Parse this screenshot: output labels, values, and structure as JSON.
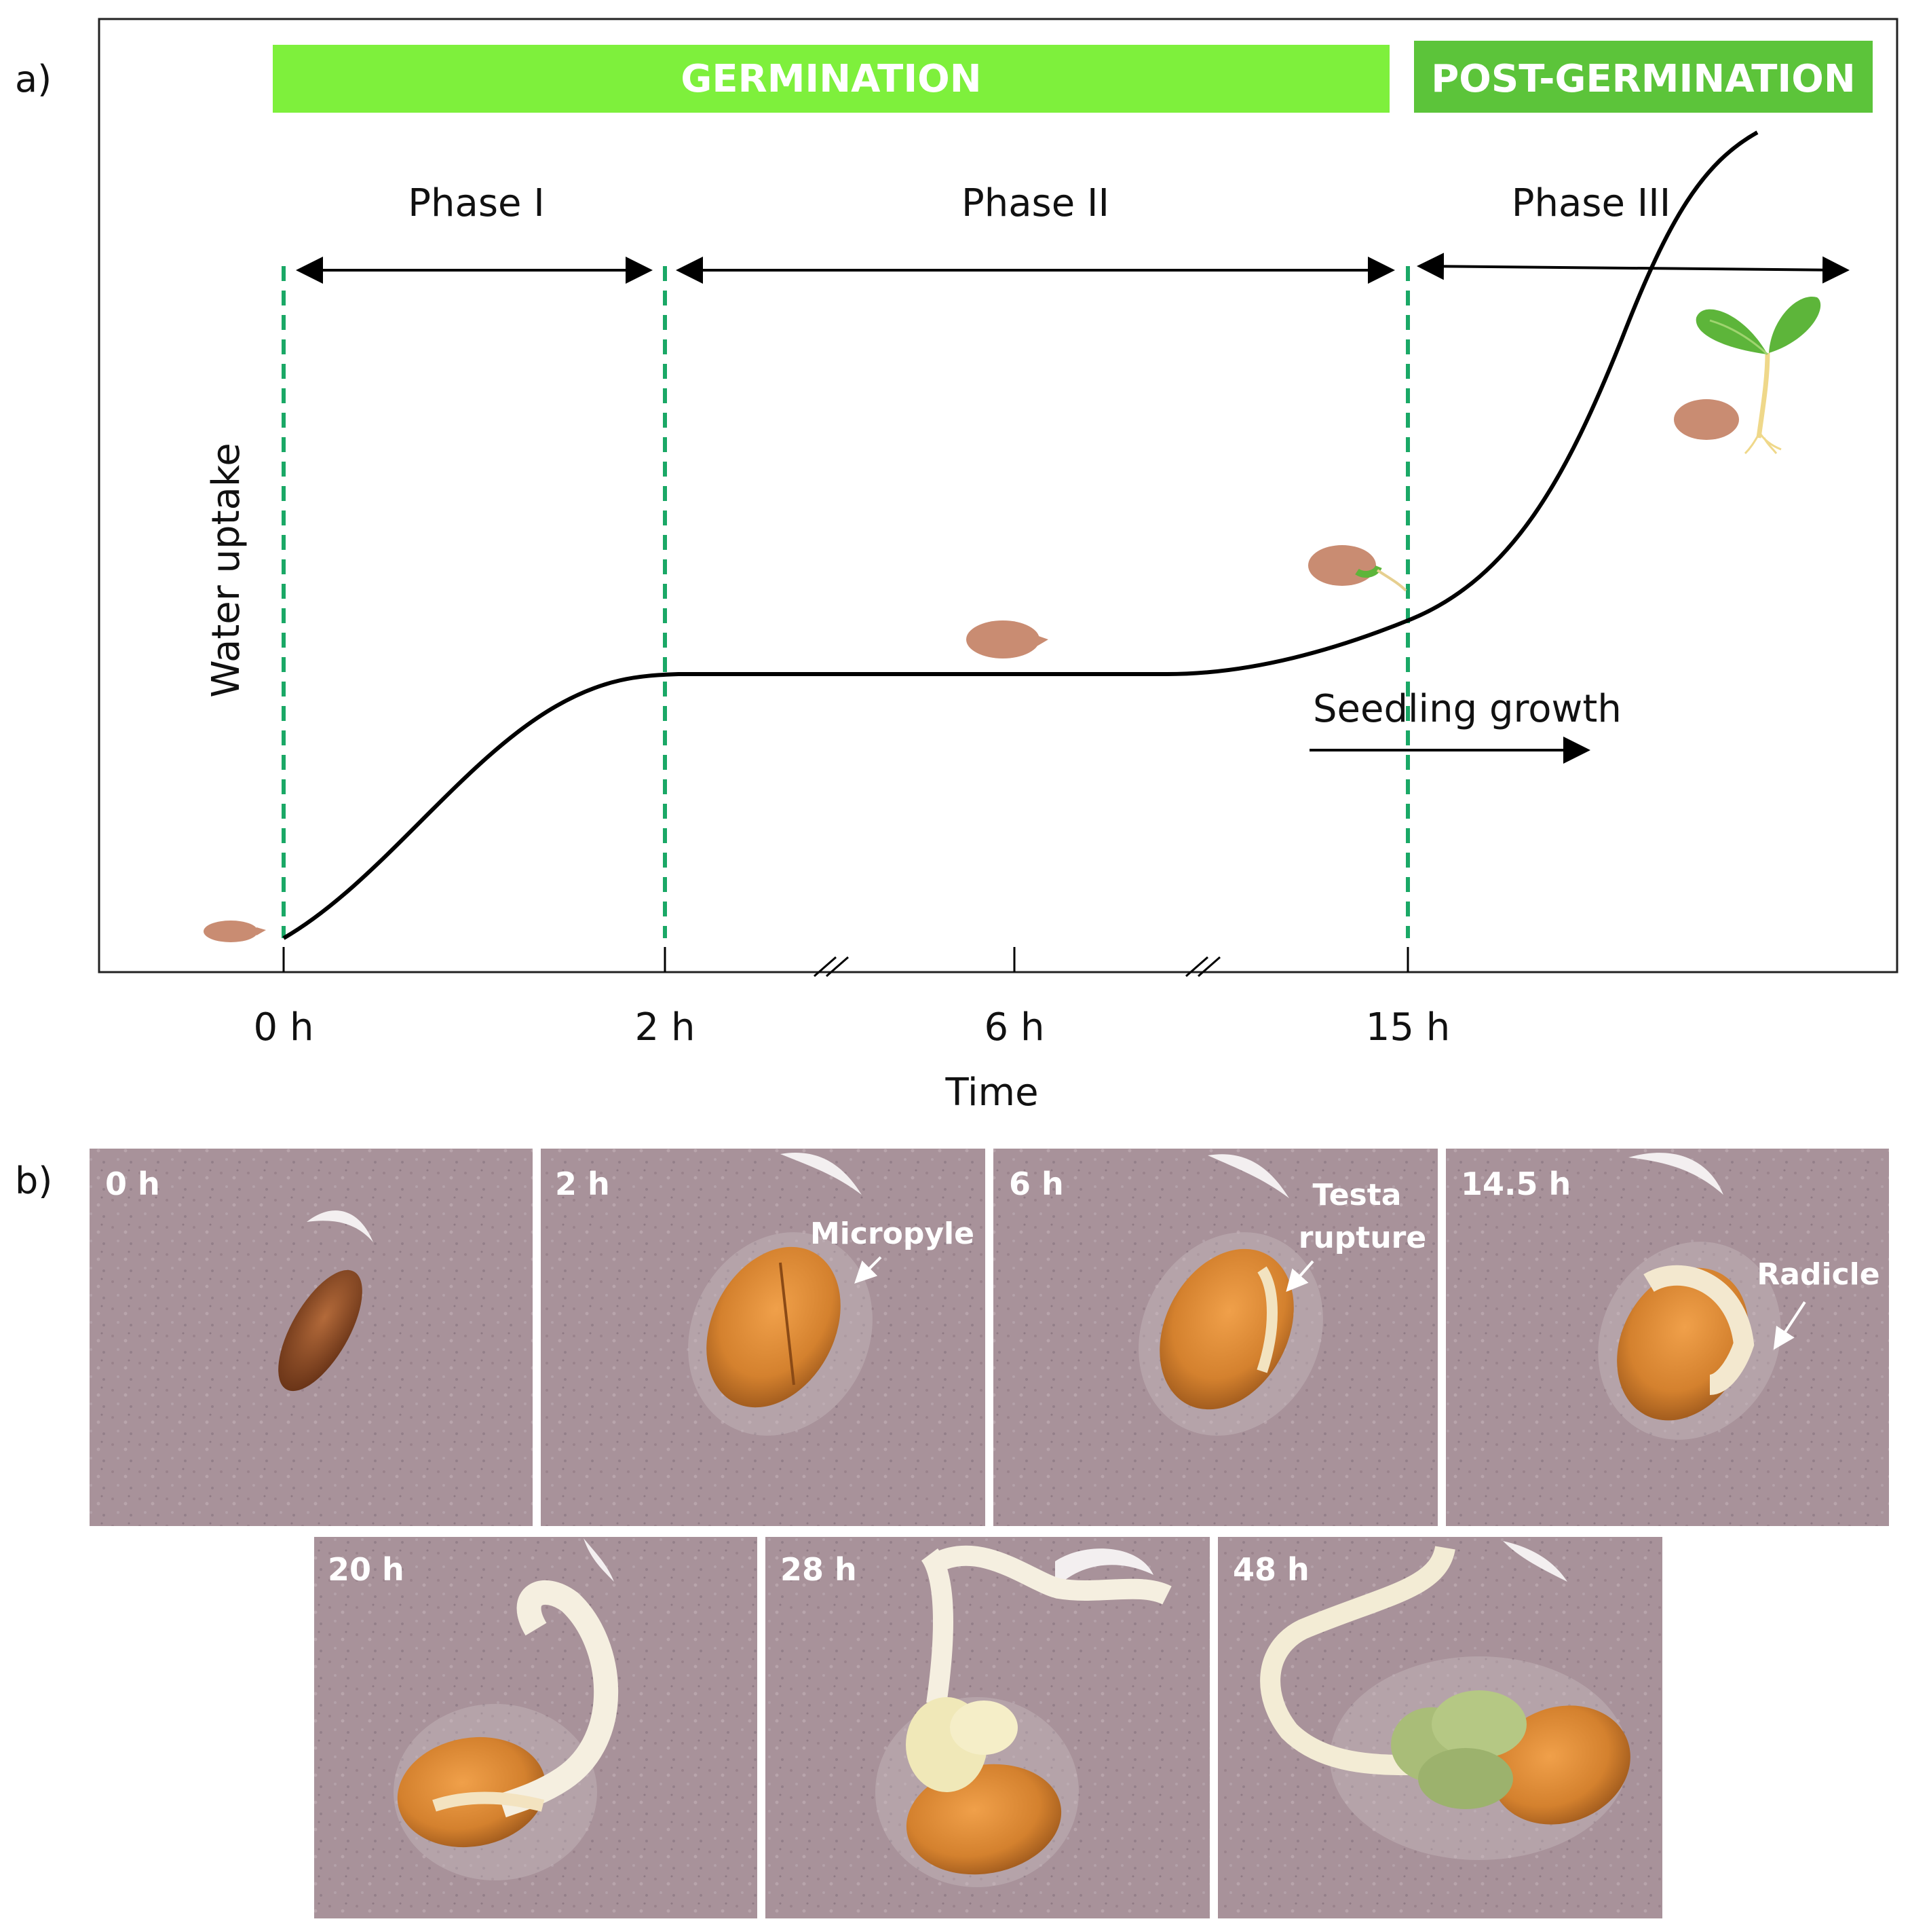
{
  "panel_a": {
    "label": "a)",
    "banner_germination": "GERMINATION",
    "banner_post": "POST-GERMINATION",
    "phases": [
      "Phase I",
      "Phase II",
      "Phase III"
    ],
    "y_axis_label": "Water uptake",
    "x_axis_label": "Time",
    "time_ticks": [
      "0 h",
      "2 h",
      "6 h",
      "15 h"
    ],
    "seedling_growth_label": "Seedling growth",
    "colors": {
      "banner_germination": "#7ef03c",
      "banner_post": "#5cc43a",
      "dashed_lines": "#1aa866",
      "curve": "#000000",
      "seed": "#c98c72",
      "leaf": "#5db53a"
    }
  },
  "panel_b": {
    "label": "b)",
    "photos": [
      {
        "time": "0 h",
        "annotation": ""
      },
      {
        "time": "2 h",
        "annotation": "Micropyle"
      },
      {
        "time": "6 h",
        "annotation_lines": [
          "Testa",
          "rupture"
        ]
      },
      {
        "time": "14.5 h",
        "annotation": "Radicle"
      },
      {
        "time": "20 h",
        "annotation": ""
      },
      {
        "time": "28 h",
        "annotation": ""
      },
      {
        "time": "48 h",
        "annotation": ""
      }
    ]
  }
}
